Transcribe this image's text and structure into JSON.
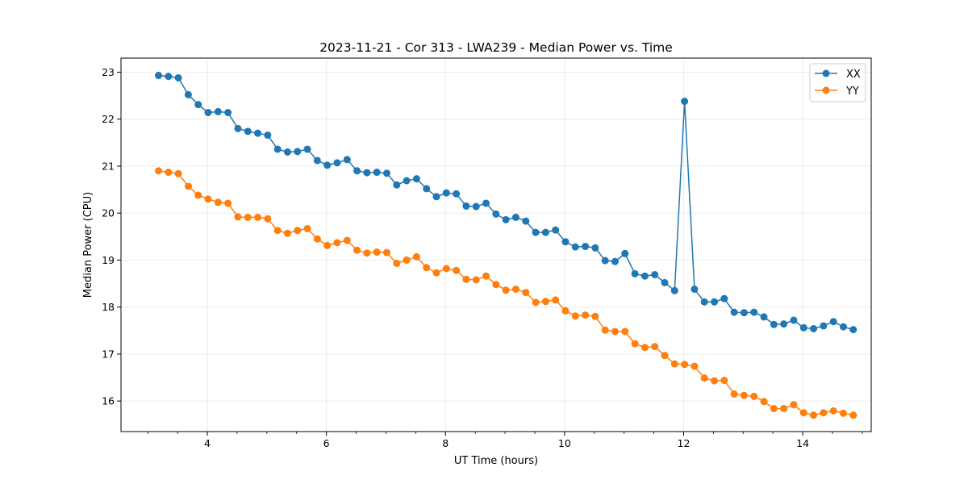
{
  "chart_data": {
    "type": "line",
    "title": "2023-11-21 - Cor 313 - LWA239 - Median Power vs. Time",
    "xlabel": "UT Time (hours)",
    "ylabel": "Median Power (CPU)",
    "xlim": [
      2.55,
      15.15
    ],
    "ylim": [
      15.35,
      23.3
    ],
    "xticks": [
      4,
      6,
      8,
      10,
      12,
      14
    ],
    "xtick_labels": [
      "4",
      "6",
      "8",
      "10",
      "12",
      "14"
    ],
    "x_minor_step": 0.5,
    "yticks": [
      16,
      17,
      18,
      19,
      20,
      21,
      22,
      23
    ],
    "ytick_labels": [
      "16",
      "17",
      "18",
      "19",
      "20",
      "21",
      "22",
      "23"
    ],
    "grid": true,
    "legend_position": "top-right",
    "x_start": 3.18,
    "x_step": 0.1667,
    "series": [
      {
        "name": "XX",
        "color": "#1f77b4",
        "marker": "circle",
        "values": [
          22.93,
          22.91,
          22.88,
          22.52,
          22.31,
          22.14,
          22.16,
          22.14,
          21.8,
          21.74,
          21.7,
          21.66,
          21.36,
          21.3,
          21.31,
          21.36,
          21.12,
          21.02,
          21.07,
          21.14,
          20.9,
          20.86,
          20.87,
          20.85,
          20.6,
          20.69,
          20.73,
          20.52,
          20.35,
          20.43,
          20.41,
          20.15,
          20.14,
          20.21,
          19.98,
          19.86,
          19.91,
          19.83,
          19.59,
          19.59,
          19.64,
          19.39,
          19.28,
          19.29,
          19.26,
          18.99,
          18.97,
          19.14,
          18.71,
          18.66,
          18.69,
          18.52,
          18.35,
          22.38,
          18.38,
          18.11,
          18.11,
          18.18,
          17.89,
          17.88,
          17.89,
          17.79,
          17.63,
          17.64,
          17.72,
          17.56,
          17.54,
          17.6,
          17.69,
          17.58,
          17.52
        ]
      },
      {
        "name": "YY",
        "color": "#ff7f0e",
        "marker": "circle",
        "values": [
          20.9,
          20.87,
          20.84,
          20.57,
          20.38,
          20.3,
          20.23,
          20.21,
          19.92,
          19.91,
          19.91,
          19.88,
          19.63,
          19.57,
          19.63,
          19.67,
          19.45,
          19.31,
          19.37,
          19.42,
          19.21,
          19.15,
          19.17,
          19.16,
          18.93,
          19.0,
          19.07,
          18.84,
          18.73,
          18.82,
          18.78,
          18.59,
          18.58,
          18.66,
          18.48,
          18.36,
          18.38,
          18.31,
          18.1,
          18.12,
          18.15,
          17.92,
          17.81,
          17.83,
          17.8,
          17.51,
          17.48,
          17.48,
          17.22,
          17.14,
          17.16,
          16.97,
          16.79,
          16.78,
          16.74,
          16.49,
          16.43,
          16.44,
          16.15,
          16.12,
          16.1,
          15.99,
          15.84,
          15.84,
          15.92,
          15.75,
          15.7,
          15.75,
          15.79,
          15.74,
          15.7
        ]
      }
    ]
  }
}
